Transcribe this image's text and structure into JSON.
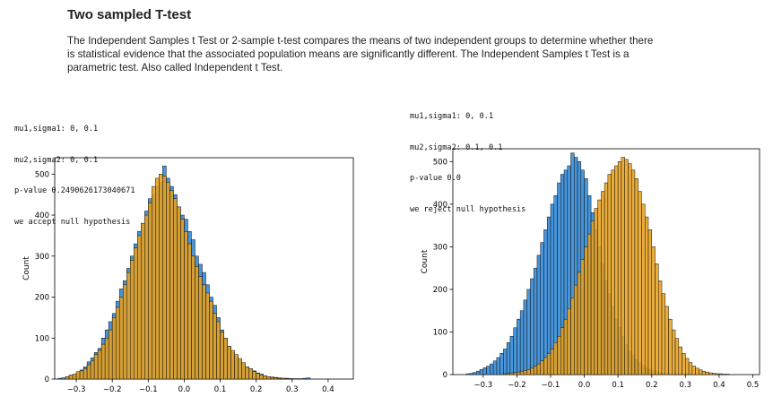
{
  "header": {
    "title": "Two sampled T-test",
    "description": "The Independent Samples t Test or 2-sample t-test compares the means of two independent groups to determine whether there is statistical evidence that the associated population means are significantly different. The Independent Samples t Test is a parametric test. Also called Independent t Test."
  },
  "left_output": {
    "line1": "mu1,sigma1: 0, 0.1",
    "line2": "mu2,sigma2: 0, 0.1",
    "line3": "p-value 0.2490626173040671",
    "line4": "we accept null hypothesis"
  },
  "right_output": {
    "line1": "mu1,sigma1: 0, 0.1",
    "line2": "mu2,sigma2: 0.1, 0.1",
    "line3": "p-value 0.0",
    "line4": "we reject null hypothesis"
  },
  "colors": {
    "series1": "#3d8fd9",
    "series2": "#e8a21f",
    "edge": "#111111"
  },
  "chart_data": [
    {
      "type": "bar",
      "ylabel": "Count",
      "xlabel": "",
      "xlim": [
        -0.36,
        0.47
      ],
      "ylim": [
        0,
        540
      ],
      "bin_width": 0.01,
      "xticks": [
        -0.3,
        -0.2,
        -0.1,
        0.0,
        0.1,
        0.2,
        0.3,
        0.4
      ],
      "xtick_labels": [
        "−0.3",
        "−0.2",
        "−0.1",
        "0.0",
        "0.1",
        "0.2",
        "0.3",
        "0.4"
      ],
      "yticks": [
        0,
        100,
        200,
        300,
        400,
        500
      ],
      "ytick_labels": [
        "0",
        "100",
        "200",
        "300",
        "400",
        "500"
      ],
      "series": [
        {
          "mu": 0,
          "sigma": 0.1,
          "x_start": -0.35,
          "x_end": 0.34,
          "counts": [
            2,
            3,
            5,
            8,
            10,
            15,
            22,
            30,
            42,
            52,
            65,
            75,
            100,
            120,
            140,
            160,
            190,
            220,
            240,
            270,
            300,
            330,
            360,
            380,
            410,
            440,
            450,
            470,
            480,
            520,
            490,
            470,
            450,
            420,
            400,
            390,
            360,
            340,
            300,
            280,
            260,
            230,
            200,
            180,
            150,
            120,
            100,
            80,
            65,
            55,
            45,
            38,
            30,
            25,
            20,
            15,
            12,
            8,
            6,
            5,
            4,
            3,
            2,
            2,
            1,
            1,
            1,
            1,
            2,
            3
          ]
        },
        {
          "mu": 0,
          "sigma": 0.1,
          "x_start": -0.33,
          "x_end": 0.3,
          "counts": [
            6,
            10,
            12,
            18,
            20,
            25,
            35,
            45,
            60,
            70,
            85,
            100,
            120,
            150,
            175,
            200,
            230,
            260,
            290,
            320,
            350,
            380,
            400,
            430,
            470,
            490,
            500,
            495,
            480,
            460,
            440,
            420,
            390,
            360,
            330,
            300,
            275,
            250,
            230,
            210,
            190,
            160,
            140,
            115,
            100,
            80,
            70,
            60,
            50,
            40,
            30,
            25,
            18,
            14,
            10,
            8,
            6,
            4,
            3,
            2,
            2,
            1,
            1
          ]
        }
      ]
    },
    {
      "type": "bar",
      "ylabel": "Count",
      "xlabel": "",
      "xlim": [
        -0.39,
        0.52
      ],
      "ylim": [
        0,
        530
      ],
      "bin_width": 0.01,
      "xticks": [
        -0.3,
        -0.2,
        -0.1,
        0.0,
        0.1,
        0.2,
        0.3,
        0.4,
        0.5
      ],
      "xtick_labels": [
        "−0.3",
        "−0.2",
        "−0.1",
        "0.0",
        "0.1",
        "0.2",
        "0.3",
        "0.4",
        "0.5"
      ],
      "yticks": [
        0,
        100,
        200,
        300,
        400,
        500
      ],
      "ytick_labels": [
        "0",
        "100",
        "200",
        "300",
        "400",
        "500"
      ],
      "series": [
        {
          "mu": 0,
          "sigma": 0.1,
          "x_start": -0.35,
          "x_end": 0.31,
          "counts": [
            2,
            3,
            5,
            8,
            12,
            16,
            20,
            25,
            32,
            40,
            50,
            60,
            75,
            90,
            110,
            130,
            150,
            175,
            200,
            225,
            250,
            280,
            310,
            340,
            370,
            400,
            420,
            450,
            470,
            480,
            490,
            520,
            510,
            500,
            480,
            460,
            420,
            380,
            340,
            300,
            260,
            220,
            190,
            160,
            130,
            110,
            90,
            70,
            55,
            45,
            35,
            28,
            22,
            16,
            12,
            9,
            7,
            5,
            3,
            2,
            2,
            1,
            1,
            1,
            1,
            1
          ]
        },
        {
          "mu": 0.1,
          "sigma": 0.1,
          "x_start": -0.24,
          "x_end": 0.43,
          "counts": [
            2,
            3,
            4,
            5,
            6,
            8,
            10,
            12,
            15,
            20,
            25,
            32,
            40,
            50,
            60,
            75,
            90,
            110,
            130,
            155,
            180,
            210,
            240,
            270,
            300,
            330,
            360,
            390,
            410,
            430,
            450,
            470,
            480,
            490,
            500,
            510,
            505,
            495,
            480,
            460,
            430,
            400,
            370,
            340,
            300,
            260,
            220,
            190,
            160,
            130,
            105,
            85,
            65,
            50,
            38,
            28,
            20,
            15,
            11,
            8,
            6,
            4,
            3,
            2,
            2,
            1,
            1
          ]
        }
      ]
    }
  ]
}
